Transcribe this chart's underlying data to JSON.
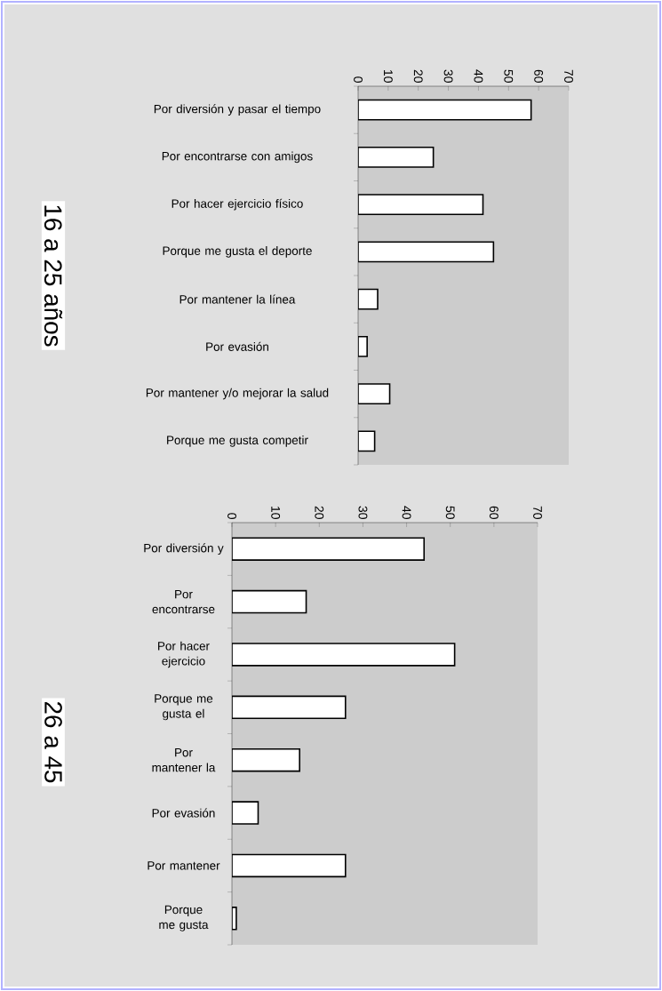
{
  "chart_data": [
    {
      "type": "bar",
      "orientation": "horizontal",
      "title": "16 a 25 años",
      "categories": [
        "Por diversión y pasar el tiempo",
        "Por encontrarse con amigos",
        "Por hacer ejercicio físico",
        "Porque me gusta el deporte",
        "Por mantener la línea",
        "Por evasión",
        "Por mantener y/o mejorar la salud",
        "Porque me gusta competir"
      ],
      "values": [
        57.5,
        25,
        41.5,
        45,
        6.5,
        3,
        10.5,
        5.5
      ],
      "color": "#ffffff",
      "xlim": [
        0,
        70
      ],
      "xticks": [
        0,
        10,
        20,
        30,
        40,
        50,
        60,
        70
      ]
    },
    {
      "type": "bar",
      "orientation": "horizontal",
      "title": "26 a 45",
      "categories": [
        "Por diversión y",
        "Por encontrarse",
        "Por hacer ejercicio",
        "Porque me gusta el",
        "Por mantener la",
        "Por evasión",
        "Por mantener",
        "Porque me gusta"
      ],
      "values": [
        44,
        17,
        51,
        26,
        15.5,
        6,
        26,
        1
      ],
      "color": "#ffffff",
      "xlim": [
        0,
        70
      ],
      "xticks": [
        0,
        10,
        20,
        30,
        40,
        50,
        60,
        70
      ]
    }
  ]
}
